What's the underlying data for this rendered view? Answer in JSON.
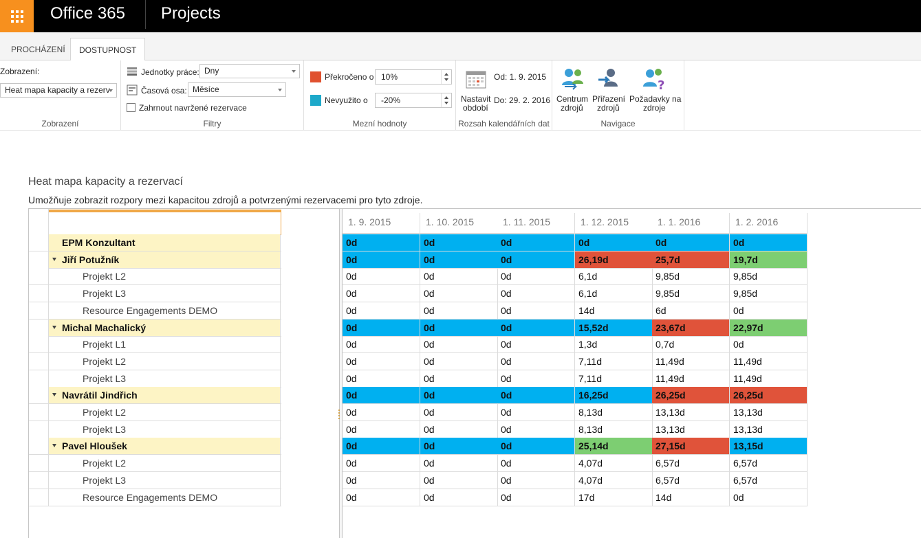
{
  "suite": {
    "brand": "Office 365",
    "app": "Projects"
  },
  "tabs": [
    {
      "label": "PROCHÁZENÍ"
    },
    {
      "label": "DOSTUPNOST"
    }
  ],
  "ribbon": {
    "zobrazeni": {
      "label": "Zobrazení:",
      "value": "Heat mapa kapacity a rezerv",
      "group": "Zobrazení"
    },
    "filtry": {
      "units_label": "Jednotky práce:",
      "units_value": "Dny",
      "axis_label": "Časová osa:",
      "axis_value": "Měsíce",
      "include_label": "Zahrnout navržené rezervace",
      "group": "Filtry"
    },
    "mezni": {
      "over_label": "Překročeno o",
      "over_value": "10%",
      "under_label": "Nevyužito o",
      "under_value": "-20%",
      "group": "Mezní hodnoty",
      "over_color": "#e0512f",
      "under_color": "#1da9ca"
    },
    "rozsah": {
      "set_label_1": "Nastavit",
      "set_label_2": "období",
      "from": "Od: 1. 9. 2015",
      "to": "Do: 29. 2. 2016",
      "group": "Rozsah kalendářních dat"
    },
    "navigace": {
      "centrum_1": "Centrum",
      "centrum_2": "zdrojů",
      "prirazeni_1": "Přiřazení",
      "prirazeni_2": "zdrojů",
      "pozadavky_1": "Požadavky na",
      "pozadavky_2": "zdroje",
      "group": "Navigace"
    }
  },
  "page": {
    "title": "Heat mapa kapacity a rezervací",
    "description": "Umožňuje zobrazit rozpory mezi kapacitou zdrojů a potvrzenými rezervacemi pro tyto zdroje."
  },
  "colors": {
    "blue": "#00b0f0",
    "red": "#e0533a",
    "green": "#7dce72",
    "highlight": "#fdf4c5"
  },
  "columns": [
    "1. 9. 2015",
    "1. 10. 2015",
    "1. 11. 2015",
    "1. 12. 2015",
    "1. 1. 2016",
    "1. 2. 2016"
  ],
  "rows": [
    {
      "name": "EPM Konzultant",
      "kind": "top",
      "values": [
        "0d",
        "0d",
        "0d",
        "0d",
        "0d",
        "0d"
      ],
      "colors": [
        "blue",
        "blue",
        "blue",
        "blue",
        "blue",
        "blue"
      ]
    },
    {
      "name": "Jiří Potužník",
      "kind": "group",
      "values": [
        "0d",
        "0d",
        "0d",
        "26,19d",
        "25,7d",
        "19,7d"
      ],
      "colors": [
        "blue",
        "blue",
        "blue",
        "red",
        "red",
        "green"
      ]
    },
    {
      "name": "Projekt L2",
      "kind": "child",
      "values": [
        "0d",
        "0d",
        "0d",
        "6,1d",
        "9,85d",
        "9,85d"
      ]
    },
    {
      "name": "Projekt L3",
      "kind": "child",
      "values": [
        "0d",
        "0d",
        "0d",
        "6,1d",
        "9,85d",
        "9,85d"
      ]
    },
    {
      "name": "Resource Engagements DEMO",
      "kind": "child",
      "values": [
        "0d",
        "0d",
        "0d",
        "14d",
        "6d",
        "0d"
      ]
    },
    {
      "name": "Michal Machalický",
      "kind": "group",
      "values": [
        "0d",
        "0d",
        "0d",
        "15,52d",
        "23,67d",
        "22,97d"
      ],
      "colors": [
        "blue",
        "blue",
        "blue",
        "blue",
        "red",
        "green"
      ]
    },
    {
      "name": "Projekt L1",
      "kind": "child",
      "values": [
        "0d",
        "0d",
        "0d",
        "1,3d",
        "0,7d",
        "0d"
      ]
    },
    {
      "name": "Projekt L2",
      "kind": "child",
      "values": [
        "0d",
        "0d",
        "0d",
        "7,11d",
        "11,49d",
        "11,49d"
      ]
    },
    {
      "name": "Projekt L3",
      "kind": "child",
      "values": [
        "0d",
        "0d",
        "0d",
        "7,11d",
        "11,49d",
        "11,49d"
      ]
    },
    {
      "name": "Navrátil Jindřich",
      "kind": "group",
      "values": [
        "0d",
        "0d",
        "0d",
        "16,25d",
        "26,25d",
        "26,25d"
      ],
      "colors": [
        "blue",
        "blue",
        "blue",
        "blue",
        "red",
        "red"
      ]
    },
    {
      "name": "Projekt L2",
      "kind": "child",
      "values": [
        "0d",
        "0d",
        "0d",
        "8,13d",
        "13,13d",
        "13,13d"
      ]
    },
    {
      "name": "Projekt L3",
      "kind": "child",
      "values": [
        "0d",
        "0d",
        "0d",
        "8,13d",
        "13,13d",
        "13,13d"
      ]
    },
    {
      "name": "Pavel Hloušek",
      "kind": "group",
      "values": [
        "0d",
        "0d",
        "0d",
        "25,14d",
        "27,15d",
        "13,15d"
      ],
      "colors": [
        "blue",
        "blue",
        "blue",
        "green",
        "red",
        "blue"
      ]
    },
    {
      "name": "Projekt L2",
      "kind": "child",
      "values": [
        "0d",
        "0d",
        "0d",
        "4,07d",
        "6,57d",
        "6,57d"
      ]
    },
    {
      "name": "Projekt L3",
      "kind": "child",
      "values": [
        "0d",
        "0d",
        "0d",
        "4,07d",
        "6,57d",
        "6,57d"
      ]
    },
    {
      "name": "Resource Engagements DEMO",
      "kind": "child",
      "values": [
        "0d",
        "0d",
        "0d",
        "17d",
        "14d",
        "0d"
      ]
    }
  ]
}
